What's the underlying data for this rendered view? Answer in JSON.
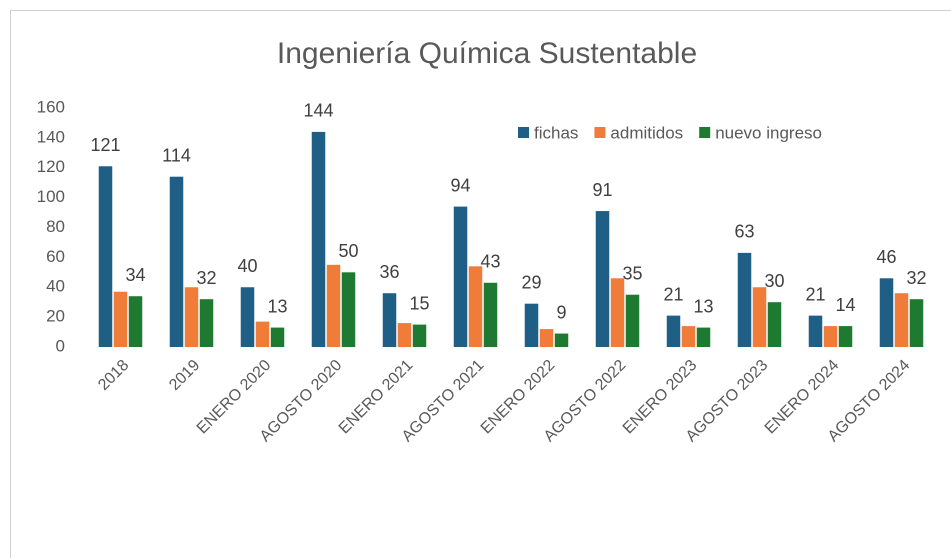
{
  "chart_data": {
    "type": "bar",
    "title": "Ingeniería Química Sustentable",
    "categories": [
      "2018",
      "2019",
      "ENERO 2020",
      "AGOSTO 2020",
      "ENERO 2021",
      "AGOSTO 2021",
      "ENERO 2022",
      "AGOSTO 2022",
      "ENERO 2023",
      "AGOSTO 2023",
      "ENERO 2024",
      "AGOSTO 2024"
    ],
    "series": [
      {
        "name": "fichas",
        "color": "#1f5f86",
        "data_labels": true,
        "values": [
          121,
          114,
          40,
          144,
          36,
          94,
          29,
          91,
          21,
          63,
          21,
          46
        ]
      },
      {
        "name": "admitidos",
        "color": "#f07c3a",
        "data_labels": false,
        "values": [
          37,
          40,
          17,
          55,
          16,
          54,
          12,
          46,
          14,
          40,
          14,
          36
        ]
      },
      {
        "name": "nuevo ingreso",
        "color": "#1e7a30",
        "data_labels": true,
        "values": [
          34,
          32,
          13,
          50,
          15,
          43,
          9,
          35,
          13,
          30,
          14,
          32
        ]
      }
    ],
    "ylim": [
      0,
      160
    ],
    "yticks": [
      0,
      20,
      40,
      60,
      80,
      100,
      120,
      140,
      160
    ],
    "grid": false,
    "legend": "top-right"
  }
}
